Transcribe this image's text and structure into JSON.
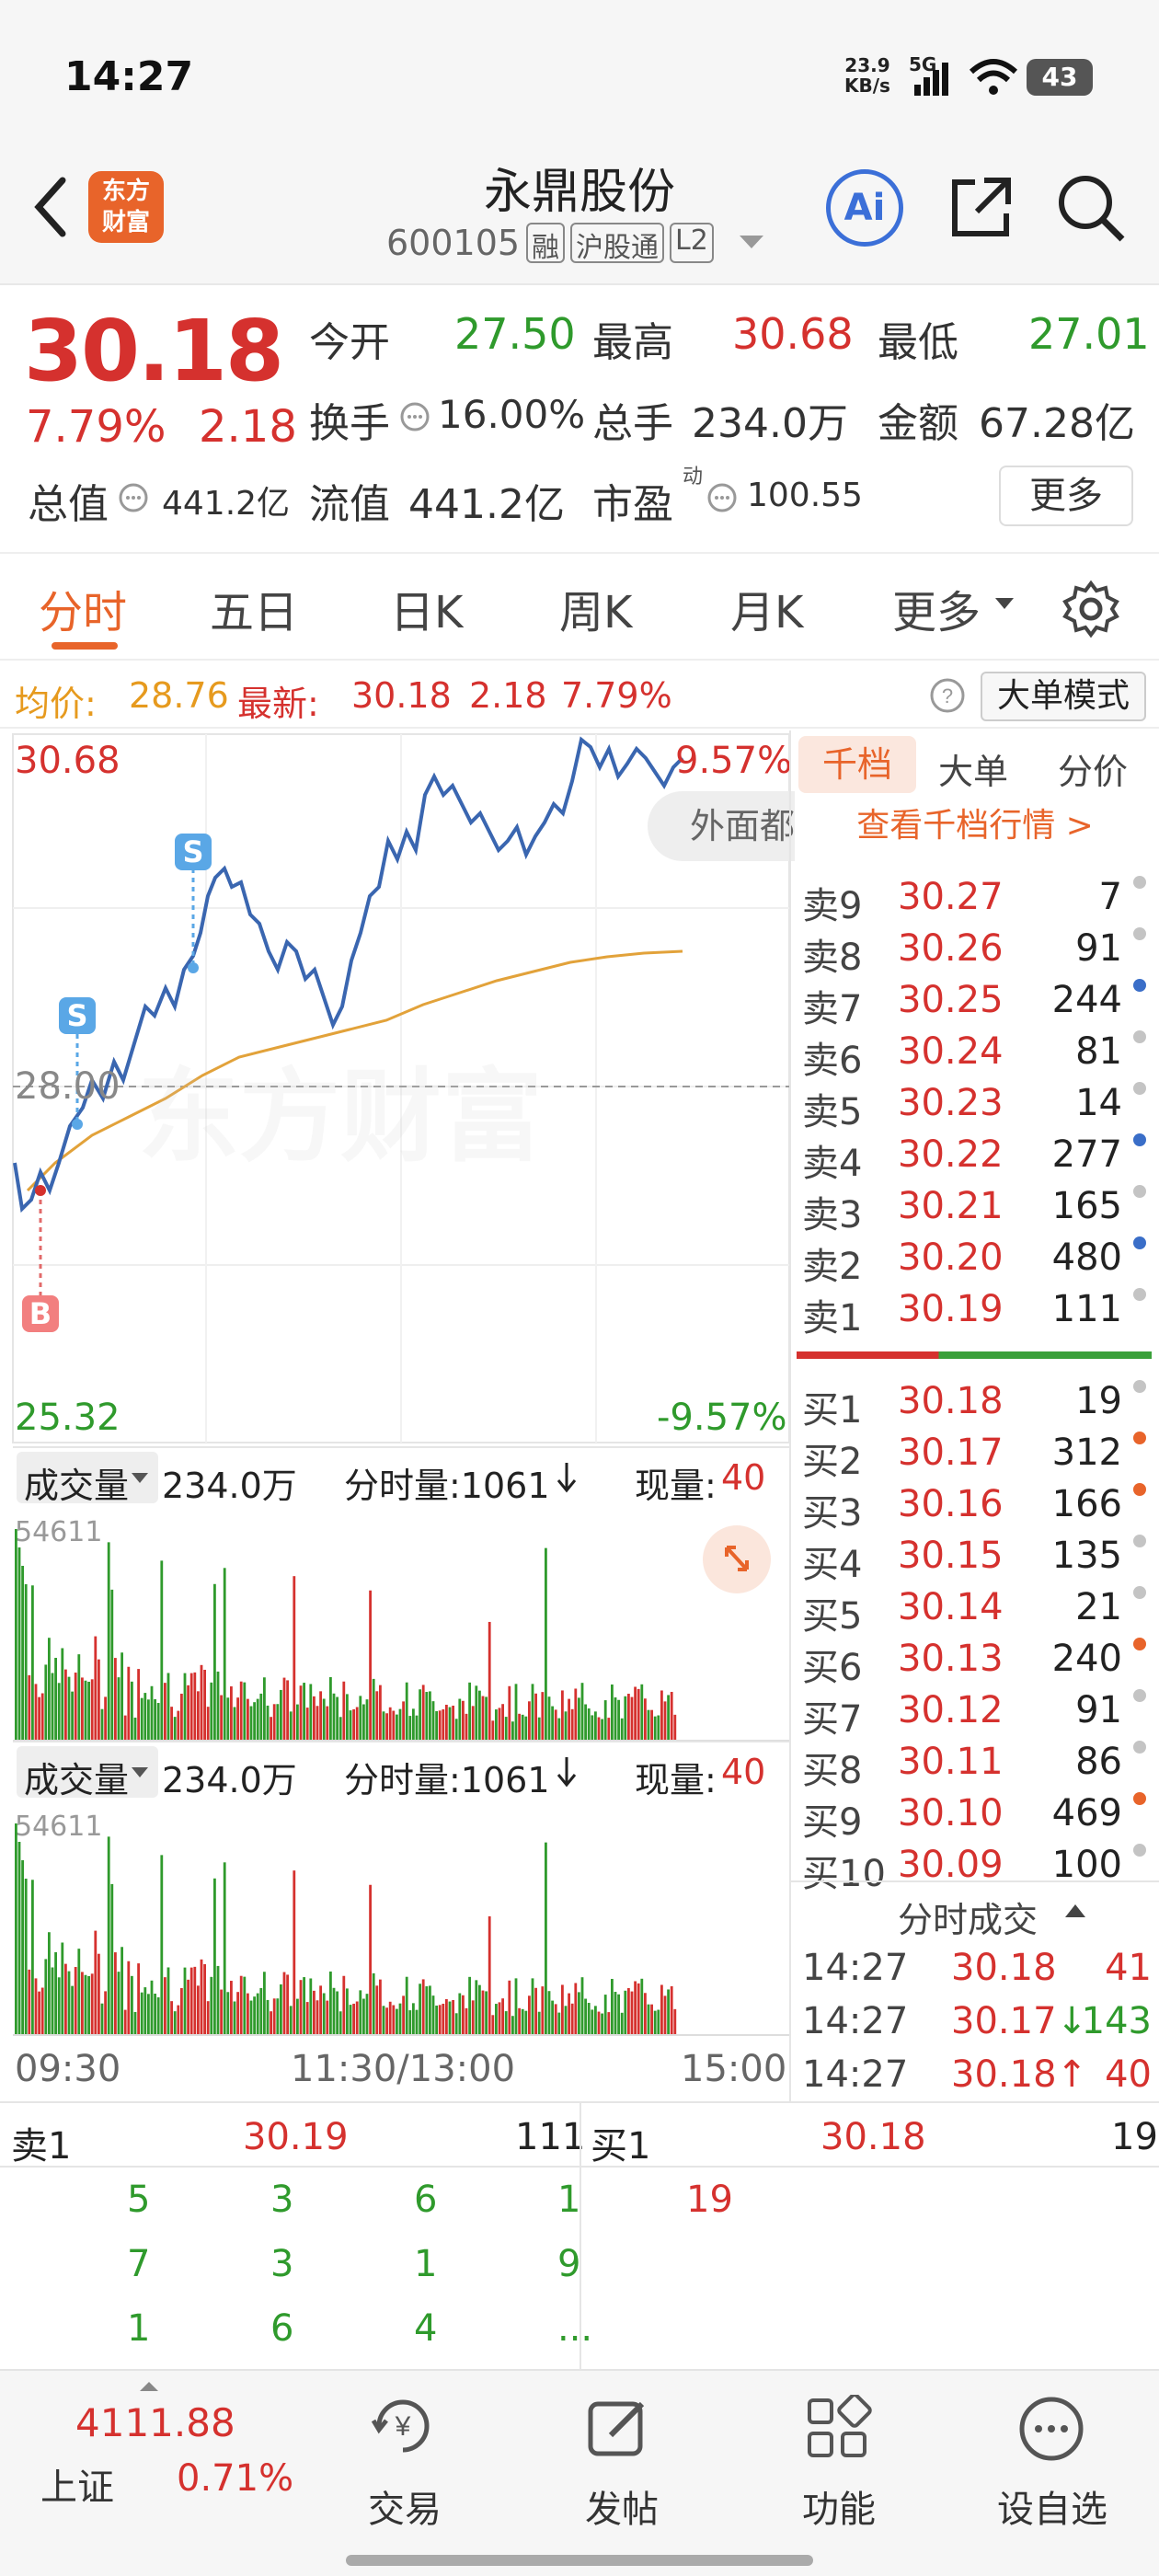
{
  "status": {
    "time": "14:27",
    "net_speed_top": "23.9",
    "net_speed_bottom": "KB/s",
    "network": "5G",
    "battery": "43"
  },
  "header": {
    "title": "永鼎股份",
    "code": "600105",
    "tags": [
      "融",
      "沪股通",
      "L2"
    ],
    "logo_line1": "东方",
    "logo_line2": "财富",
    "ai_label": "Ai"
  },
  "quote": {
    "price": "30.18",
    "pct": "7.79%",
    "change": "2.18",
    "open_label": "今开",
    "open": "27.50",
    "high_label": "最高",
    "high": "30.68",
    "low_label": "最低",
    "low": "27.01",
    "turnover_label": "换手",
    "turnover": "16.00%",
    "volume_label": "总手",
    "volume": "234.0万",
    "amount_label": "金额",
    "amount": "67.28亿",
    "mktcap_label": "总值",
    "mktcap": "441.2亿",
    "float_label": "流值",
    "float": "441.2亿",
    "pe_label": "市盈",
    "pe_sup": "动",
    "pe": "100.55",
    "more": "更多"
  },
  "tabs": [
    "分时",
    "五日",
    "日K",
    "周K",
    "月K",
    "更多"
  ],
  "info_line": {
    "avg_label": "均价:",
    "avg": "28.76",
    "latest_label": "最新:",
    "latest": "30.18",
    "chg": "2.18",
    "pct": "7.79%",
    "mode": "大单模式"
  },
  "chart": {
    "ymax": "30.68",
    "ymid": "28.00",
    "ymin": "25.32",
    "pct_top": "9.57%",
    "pct_bottom": "-9.57%",
    "watermark": "东方财富",
    "overlay": "外面都",
    "markers": [
      "S",
      "S",
      "B"
    ]
  },
  "volume_panel": {
    "label": "成交量",
    "total": "234.0万",
    "time_vol_label": "分时量:1061",
    "now_label": "现量:",
    "now": "40",
    "peak": "54611"
  },
  "time_axis": [
    "09:30",
    "11:30/13:00",
    "15:00"
  ],
  "right_tabs": [
    "千档",
    "大单",
    "分价"
  ],
  "depth_link": "查看千档行情 >",
  "asks": [
    {
      "label": "卖9",
      "price": "30.27",
      "vol": "7",
      "dot": "gray"
    },
    {
      "label": "卖8",
      "price": "30.26",
      "vol": "91",
      "dot": "gray"
    },
    {
      "label": "卖7",
      "price": "30.25",
      "vol": "244",
      "dot": "blue"
    },
    {
      "label": "卖6",
      "price": "30.24",
      "vol": "81",
      "dot": "gray"
    },
    {
      "label": "卖5",
      "price": "30.23",
      "vol": "14",
      "dot": "gray"
    },
    {
      "label": "卖4",
      "price": "30.22",
      "vol": "277",
      "dot": "blue"
    },
    {
      "label": "卖3",
      "price": "30.21",
      "vol": "165",
      "dot": "gray"
    },
    {
      "label": "卖2",
      "price": "30.20",
      "vol": "480",
      "dot": "blue"
    },
    {
      "label": "卖1",
      "price": "30.19",
      "vol": "111",
      "dot": "gray"
    }
  ],
  "bids": [
    {
      "label": "买1",
      "price": "30.18",
      "vol": "19",
      "dot": "gray"
    },
    {
      "label": "买2",
      "price": "30.17",
      "vol": "312",
      "dot": "orange"
    },
    {
      "label": "买3",
      "price": "30.16",
      "vol": "166",
      "dot": "orange"
    },
    {
      "label": "买4",
      "price": "30.15",
      "vol": "135",
      "dot": "gray"
    },
    {
      "label": "买5",
      "price": "30.14",
      "vol": "21",
      "dot": "gray"
    },
    {
      "label": "买6",
      "price": "30.13",
      "vol": "240",
      "dot": "orange"
    },
    {
      "label": "买7",
      "price": "30.12",
      "vol": "91",
      "dot": "gray"
    },
    {
      "label": "买8",
      "price": "30.11",
      "vol": "86",
      "dot": "gray"
    },
    {
      "label": "买9",
      "price": "30.10",
      "vol": "469",
      "dot": "orange"
    },
    {
      "label": "买10",
      "price": "30.09",
      "vol": "100",
      "dot": "gray"
    }
  ],
  "ticks_title": "分时成交",
  "ticks": [
    {
      "time": "14:27",
      "price": "30.18",
      "vol": "41",
      "arrow": ""
    },
    {
      "time": "14:27",
      "price": "30.17",
      "vol": "143",
      "arrow": "↓"
    },
    {
      "time": "14:27",
      "price": "30.18",
      "vol": "40",
      "arrow": "↑"
    }
  ],
  "queue": {
    "ask_label": "卖1",
    "ask_price": "30.19",
    "ask_vol": "111",
    "bid_label": "买1",
    "bid_price": "30.18",
    "bid_vol": "19",
    "ask_cells": [
      "5",
      "3",
      "6",
      "1",
      "7",
      "3",
      "1",
      "9",
      "1",
      "6",
      "4",
      "..."
    ],
    "bid_cells": [
      "19"
    ]
  },
  "bottom": {
    "index_value": "4111.88",
    "index_name": "上证",
    "index_pct": "0.71%",
    "items": [
      "交易",
      "发帖",
      "功能",
      "设自选"
    ]
  },
  "colors": {
    "up": "#d5312e",
    "down": "#2f9a2c",
    "accent": "#e8642a",
    "line": "#3a66b0",
    "avg": "#e2a23a"
  }
}
